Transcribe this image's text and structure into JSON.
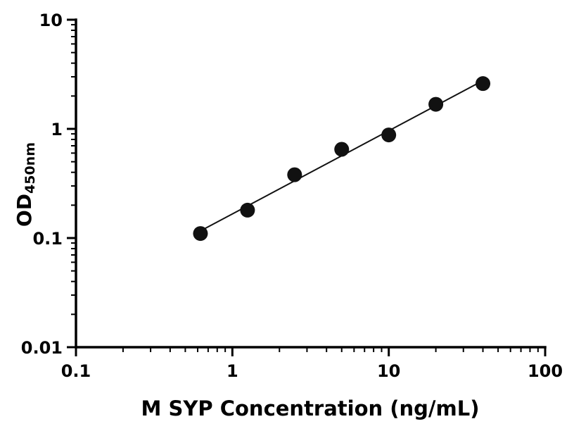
{
  "chart_data": {
    "type": "scatter",
    "title": "",
    "xlabel": "M SYP Concentration (ng/mL)",
    "ylabel_main": "OD",
    "ylabel_sub": "450nm",
    "x_scale": "log",
    "y_scale": "log",
    "xlim": [
      0.1,
      100
    ],
    "ylim": [
      0.01,
      10
    ],
    "x": [
      0.625,
      1.25,
      2.5,
      5,
      10,
      20,
      40
    ],
    "y": [
      0.11,
      0.18,
      0.38,
      0.65,
      0.88,
      1.68,
      2.6
    ],
    "fit_line": true,
    "x_ticks": [
      {
        "v": 0.1,
        "label": "0.1"
      },
      {
        "v": 1,
        "label": "1"
      },
      {
        "v": 10,
        "label": "10"
      },
      {
        "v": 100,
        "label": "100"
      }
    ],
    "y_ticks": [
      {
        "v": 0.01,
        "label": "0.01"
      },
      {
        "v": 0.1,
        "label": "0.1"
      },
      {
        "v": 1,
        "label": "1"
      },
      {
        "v": 10,
        "label": "10"
      }
    ],
    "grid": false,
    "legend": "none",
    "axis_color": "#000000",
    "point_color": "#111111",
    "line_color": "#111111"
  }
}
